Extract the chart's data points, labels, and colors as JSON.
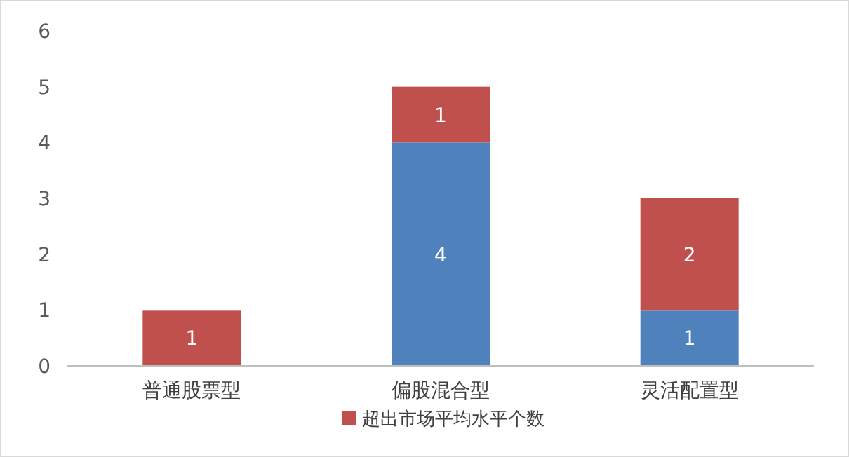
{
  "chart_data": {
    "type": "bar",
    "stacked": true,
    "categories": [
      "普通股票型",
      "偏股混合型",
      "灵活配置型"
    ],
    "series": [
      {
        "color": "#4f81bd",
        "values": [
          0,
          4,
          1
        ],
        "value_labels": [
          null,
          "4",
          "1"
        ]
      },
      {
        "name": "超出市场平均水平个数",
        "color": "#c0504d",
        "values": [
          1,
          1,
          2
        ],
        "value_labels": [
          "1",
          "1",
          "2"
        ]
      }
    ],
    "ylim": [
      0,
      6
    ],
    "yticks": [
      0,
      1,
      2,
      3,
      4,
      5,
      6
    ],
    "legend": "bottom"
  }
}
